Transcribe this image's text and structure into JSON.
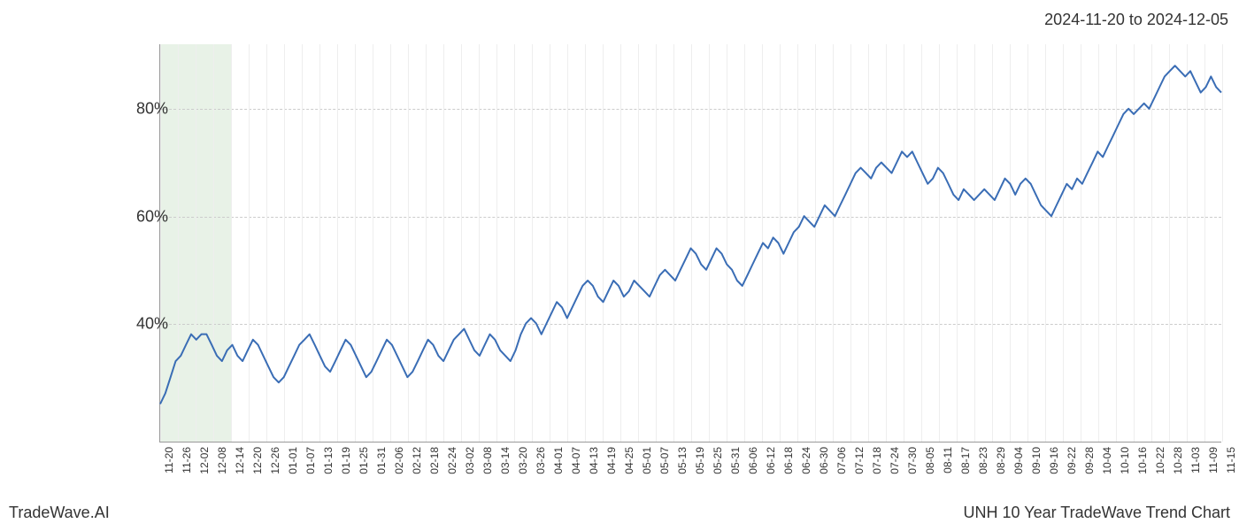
{
  "header": {
    "date_range": "2024-11-20 to 2024-12-05"
  },
  "footer": {
    "brand": "TradeWave.AI",
    "chart_title": "UNH 10 Year TradeWave Trend Chart"
  },
  "chart": {
    "type": "line",
    "line_color": "#3a6db5",
    "line_width": 2,
    "background_color": "#ffffff",
    "grid_color_major": "#cccccc",
    "grid_color_minor": "#eeeeee",
    "axis_color": "#999999",
    "highlight_band": {
      "start_index": 0,
      "end_index": 4,
      "fill_color": "#d5e8d4",
      "opacity": 0.55
    },
    "y_axis": {
      "min": 18,
      "max": 92,
      "ticks": [
        40,
        60,
        80
      ],
      "tick_labels": [
        "40%",
        "60%",
        "80%"
      ],
      "fontsize": 18
    },
    "x_axis": {
      "labels": [
        "11-20",
        "11-26",
        "12-02",
        "12-08",
        "12-14",
        "12-20",
        "12-26",
        "01-01",
        "01-07",
        "01-13",
        "01-19",
        "01-25",
        "01-31",
        "02-06",
        "02-12",
        "02-18",
        "02-24",
        "03-02",
        "03-08",
        "03-14",
        "03-20",
        "03-26",
        "04-01",
        "04-07",
        "04-13",
        "04-19",
        "04-25",
        "05-01",
        "05-07",
        "05-13",
        "05-19",
        "05-25",
        "05-31",
        "06-06",
        "06-12",
        "06-18",
        "06-24",
        "06-30",
        "07-06",
        "07-12",
        "07-18",
        "07-24",
        "07-30",
        "08-05",
        "08-11",
        "08-17",
        "08-23",
        "08-29",
        "09-04",
        "09-10",
        "09-16",
        "09-22",
        "09-28",
        "10-04",
        "10-10",
        "10-16",
        "10-22",
        "10-28",
        "11-03",
        "11-09",
        "11-15"
      ],
      "fontsize": 12,
      "rotation": -90
    },
    "series": [
      25,
      27,
      30,
      33,
      34,
      36,
      38,
      37,
      38,
      38,
      36,
      34,
      33,
      35,
      36,
      34,
      33,
      35,
      37,
      36,
      34,
      32,
      30,
      29,
      30,
      32,
      34,
      36,
      37,
      38,
      36,
      34,
      32,
      31,
      33,
      35,
      37,
      36,
      34,
      32,
      30,
      31,
      33,
      35,
      37,
      36,
      34,
      32,
      30,
      31,
      33,
      35,
      37,
      36,
      34,
      33,
      35,
      37,
      38,
      39,
      37,
      35,
      34,
      36,
      38,
      37,
      35,
      34,
      33,
      35,
      38,
      40,
      41,
      40,
      38,
      40,
      42,
      44,
      43,
      41,
      43,
      45,
      47,
      48,
      47,
      45,
      44,
      46,
      48,
      47,
      45,
      46,
      48,
      47,
      46,
      45,
      47,
      49,
      50,
      49,
      48,
      50,
      52,
      54,
      53,
      51,
      50,
      52,
      54,
      53,
      51,
      50,
      48,
      47,
      49,
      51,
      53,
      55,
      54,
      56,
      55,
      53,
      55,
      57,
      58,
      60,
      59,
      58,
      60,
      62,
      61,
      60,
      62,
      64,
      66,
      68,
      69,
      68,
      67,
      69,
      70,
      69,
      68,
      70,
      72,
      71,
      72,
      70,
      68,
      66,
      67,
      69,
      68,
      66,
      64,
      63,
      65,
      64,
      63,
      64,
      65,
      64,
      63,
      65,
      67,
      66,
      64,
      66,
      67,
      66,
      64,
      62,
      61,
      60,
      62,
      64,
      66,
      65,
      67,
      66,
      68,
      70,
      72,
      71,
      73,
      75,
      77,
      79,
      80,
      79,
      80,
      81,
      80,
      82,
      84,
      86,
      87,
      88,
      87,
      86,
      87,
      85,
      83,
      84,
      86,
      84,
      83
    ]
  }
}
